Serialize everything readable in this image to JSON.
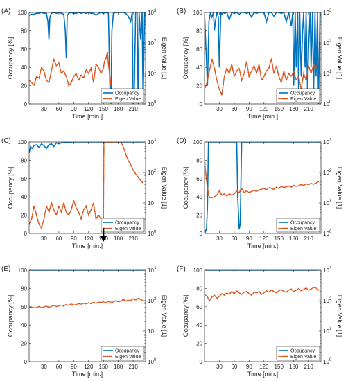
{
  "colors": {
    "occupancy": "#0072BD",
    "eigen": "#D95319",
    "axis": "#262626"
  },
  "common": {
    "xlabel": "Time [min.]",
    "ylabel_left": "Occupancy [%]",
    "ylabel_right": "Eigen Value [1]",
    "x_ticks": [
      30,
      60,
      90,
      120,
      150,
      180,
      210
    ],
    "xlim": [
      0,
      235
    ],
    "yleft_ticks": [
      0,
      20,
      40,
      60,
      80,
      100
    ],
    "yleft_lim": [
      0,
      100
    ],
    "yright_scale": "log",
    "yright_lim": [
      1,
      1000
    ],
    "yright_tick_labels": [
      "10^0",
      "10^1",
      "10^2",
      "10^3"
    ],
    "legend": [
      "Occupancy",
      "Eigen Value"
    ],
    "legend_position": "bottom-right"
  },
  "chart_data": [
    {
      "type": "line",
      "panel_label": "(A)",
      "series": [
        {
          "name": "Occupancy",
          "axis": "left",
          "style": "solid",
          "x": [
            0,
            5,
            10,
            15,
            20,
            25,
            30,
            35,
            38,
            40,
            42,
            45,
            50,
            55,
            60,
            65,
            70,
            73,
            75,
            77,
            80,
            85,
            90,
            95,
            100,
            105,
            110,
            115,
            120,
            125,
            130,
            135,
            140,
            145,
            150,
            155,
            160,
            163,
            165,
            167,
            170,
            175,
            180,
            185,
            190,
            195,
            200,
            205,
            208,
            210,
            212,
            215,
            218,
            220,
            222,
            225,
            228,
            230,
            233
          ],
          "y": [
            97,
            98,
            98,
            99,
            99,
            100,
            99,
            99,
            90,
            70,
            95,
            99,
            100,
            99,
            100,
            99,
            98,
            80,
            50,
            97,
            99,
            100,
            99,
            99,
            100,
            99,
            100,
            99,
            100,
            99,
            99,
            97,
            99,
            100,
            99,
            100,
            99,
            20,
            0,
            80,
            99,
            100,
            100,
            100,
            100,
            99,
            96,
            90,
            100,
            0,
            10,
            100,
            100,
            0,
            100,
            70,
            100,
            0,
            100
          ]
        },
        {
          "name": "Eigen Value",
          "axis": "right",
          "style": "dotted",
          "x": [
            0,
            5,
            10,
            15,
            20,
            25,
            30,
            35,
            40,
            45,
            50,
            55,
            60,
            65,
            70,
            75,
            80,
            85,
            90,
            95,
            100,
            105,
            110,
            115,
            120,
            125,
            130,
            135,
            140,
            145,
            150,
            152,
            155,
            158,
            160,
            163,
            165
          ],
          "y": [
            6,
            5,
            4,
            8,
            7,
            16,
            12,
            6,
            5,
            12,
            30,
            18,
            22,
            10,
            12,
            8,
            4,
            5,
            8,
            10,
            6,
            9,
            7,
            13,
            10,
            15,
            5,
            20,
            16,
            10,
            15,
            25,
            30,
            50,
            20,
            8,
            4
          ]
        }
      ]
    },
    {
      "type": "line",
      "panel_label": "(B)",
      "series": [
        {
          "name": "Occupancy",
          "axis": "left",
          "style": "solid",
          "x": [
            0,
            3,
            6,
            9,
            12,
            15,
            18,
            20,
            22,
            25,
            28,
            30,
            33,
            35,
            38,
            40,
            45,
            50,
            55,
            60,
            65,
            70,
            75,
            80,
            85,
            90,
            95,
            100,
            105,
            110,
            115,
            120,
            125,
            130,
            135,
            140,
            145,
            150,
            155,
            160,
            165,
            170,
            175,
            178,
            180,
            183,
            185,
            188,
            190,
            192,
            195,
            198,
            200,
            203,
            205,
            208,
            210,
            213,
            215,
            218,
            220,
            223,
            225,
            228,
            230,
            233
          ],
          "y": [
            100,
            60,
            20,
            90,
            100,
            95,
            100,
            80,
            90,
            100,
            95,
            40,
            100,
            98,
            100,
            99,
            100,
            92,
            100,
            99,
            100,
            98,
            100,
            100,
            99,
            100,
            95,
            100,
            99,
            100,
            100,
            100,
            90,
            100,
            100,
            96,
            100,
            100,
            99,
            100,
            90,
            100,
            85,
            100,
            20,
            100,
            40,
            100,
            10,
            100,
            30,
            80,
            100,
            40,
            100,
            10,
            60,
            100,
            40,
            100,
            10,
            100,
            30,
            100,
            0,
            100
          ]
        },
        {
          "name": "Eigen Value",
          "axis": "right",
          "style": "dotted",
          "x": [
            0,
            5,
            10,
            15,
            20,
            25,
            30,
            35,
            40,
            45,
            50,
            55,
            60,
            65,
            70,
            75,
            80,
            85,
            90,
            95,
            100,
            105,
            110,
            115,
            120,
            125,
            130,
            135,
            140,
            145,
            150,
            155,
            160,
            165,
            170,
            175,
            180,
            185,
            190,
            195,
            200,
            205,
            210,
            215,
            220,
            225,
            230
          ],
          "y": [
            3,
            5,
            12,
            30,
            15,
            6,
            3,
            2,
            8,
            15,
            10,
            20,
            8,
            12,
            15,
            6,
            10,
            25,
            8,
            12,
            18,
            10,
            20,
            6,
            8,
            12,
            15,
            30,
            10,
            18,
            8,
            5,
            12,
            6,
            10,
            8,
            12,
            6,
            8,
            3,
            10,
            6,
            18,
            10,
            20,
            15,
            25
          ]
        }
      ]
    },
    {
      "type": "line",
      "panel_label": "(C)",
      "annotation": "arrow-at-x-150",
      "series": [
        {
          "name": "Occupancy",
          "axis": "left",
          "style": "solid",
          "x": [
            0,
            3,
            6,
            10,
            15,
            20,
            25,
            30,
            35,
            40,
            45,
            50,
            55,
            60,
            65,
            70,
            75,
            80,
            85,
            90,
            95,
            100,
            110,
            120,
            130,
            140,
            150,
            160,
            170,
            180,
            190,
            200,
            210,
            220,
            230
          ],
          "y": [
            88,
            95,
            93,
            96,
            97,
            94,
            98,
            96,
            93,
            97,
            98,
            95,
            99,
            98,
            99,
            99,
            100,
            99,
            100,
            100,
            100,
            100,
            100,
            100,
            100,
            100,
            100,
            100,
            100,
            100,
            100,
            100,
            100,
            100,
            100
          ]
        },
        {
          "name": "Eigen Value",
          "axis": "right",
          "style": "dotted",
          "x": [
            0,
            5,
            10,
            15,
            20,
            25,
            30,
            35,
            40,
            45,
            50,
            55,
            60,
            65,
            70,
            75,
            80,
            85,
            90,
            95,
            100,
            105,
            110,
            115,
            120,
            125,
            130,
            135,
            140,
            145,
            150,
            151,
            155,
            160,
            165,
            170,
            175,
            180,
            185,
            190,
            195,
            200,
            205,
            210,
            215,
            220,
            225,
            230
          ],
          "y": [
            2,
            3,
            8,
            4,
            2,
            1.5,
            3,
            8,
            5,
            10,
            6,
            4,
            8,
            5,
            10,
            5,
            4,
            6,
            12,
            7,
            5,
            3,
            6,
            8,
            4,
            6,
            10,
            3,
            4,
            3,
            3,
            1000,
            1000,
            1000,
            1000,
            1000,
            1000,
            1000,
            1000,
            700,
            400,
            250,
            180,
            120,
            90,
            70,
            55,
            45
          ]
        }
      ]
    },
    {
      "type": "line",
      "panel_label": "(D)",
      "series": [
        {
          "name": "Occupancy",
          "axis": "left",
          "style": "solid",
          "x": [
            0,
            2,
            4,
            6,
            8,
            10,
            15,
            20,
            30,
            40,
            50,
            60,
            65,
            67,
            70,
            72,
            75,
            77,
            80,
            85,
            90,
            100,
            120,
            150,
            180,
            210,
            233
          ],
          "y": [
            5,
            2,
            5,
            30,
            100,
            100,
            100,
            100,
            100,
            100,
            100,
            100,
            100,
            40,
            5,
            10,
            100,
            100,
            100,
            100,
            100,
            100,
            100,
            100,
            100,
            100,
            100
          ]
        },
        {
          "name": "Eigen Value",
          "axis": "right",
          "style": "dotted",
          "x": [
            0,
            2,
            5,
            8,
            10,
            15,
            20,
            25,
            30,
            35,
            40,
            45,
            50,
            55,
            60,
            65,
            70,
            75,
            80,
            85,
            90,
            95,
            100,
            105,
            110,
            115,
            120,
            125,
            130,
            135,
            140,
            145,
            150,
            155,
            160,
            165,
            170,
            175,
            180,
            185,
            190,
            195,
            200,
            205,
            210,
            215,
            220,
            225,
            230
          ],
          "y": [
            300,
            120,
            40,
            20,
            15,
            15,
            16,
            18,
            25,
            18,
            20,
            17,
            20,
            18,
            20,
            25,
            22,
            30,
            22,
            25,
            22,
            24,
            26,
            24,
            27,
            28,
            30,
            27,
            32,
            30,
            28,
            33,
            30,
            35,
            32,
            34,
            36,
            33,
            38,
            35,
            37,
            40,
            38,
            42,
            40,
            44,
            41,
            45,
            50
          ]
        }
      ]
    },
    {
      "type": "line",
      "panel_label": "(E)",
      "series": [
        {
          "name": "Occupancy",
          "axis": "left",
          "style": "solid",
          "x": [
            0,
            230
          ],
          "y": [
            100,
            100
          ]
        },
        {
          "name": "Eigen Value",
          "axis": "right",
          "style": "dotted",
          "x": [
            0,
            5,
            10,
            15,
            20,
            25,
            30,
            35,
            40,
            45,
            50,
            55,
            60,
            65,
            70,
            75,
            80,
            85,
            90,
            95,
            100,
            105,
            110,
            115,
            120,
            125,
            130,
            135,
            140,
            145,
            150,
            155,
            160,
            165,
            170,
            175,
            180,
            185,
            190,
            195,
            200,
            205,
            210,
            215,
            220,
            225,
            230
          ],
          "y": [
            60,
            62,
            58,
            60,
            64,
            58,
            62,
            66,
            60,
            65,
            70,
            64,
            68,
            72,
            66,
            75,
            70,
            78,
            72,
            74,
            80,
            76,
            82,
            78,
            85,
            80,
            88,
            82,
            90,
            86,
            92,
            84,
            95,
            88,
            90,
            100,
            92,
            96,
            110,
            98,
            104,
            100,
            115,
            105,
            120,
            110,
            100
          ]
        }
      ]
    },
    {
      "type": "line",
      "panel_label": "(F)",
      "series": [
        {
          "name": "Occupancy",
          "axis": "left",
          "style": "solid",
          "x": [
            0,
            230
          ],
          "y": [
            100,
            100
          ]
        },
        {
          "name": "Eigen Value",
          "axis": "right",
          "style": "dotted",
          "x": [
            0,
            5,
            10,
            15,
            20,
            25,
            30,
            35,
            40,
            45,
            50,
            55,
            60,
            65,
            70,
            75,
            80,
            85,
            90,
            95,
            100,
            105,
            110,
            115,
            120,
            125,
            130,
            135,
            140,
            145,
            150,
            155,
            160,
            165,
            170,
            175,
            180,
            185,
            190,
            195,
            200,
            205,
            210,
            215,
            220,
            225,
            230
          ],
          "y": [
            160,
            140,
            100,
            130,
            150,
            120,
            140,
            170,
            150,
            180,
            160,
            200,
            170,
            210,
            180,
            160,
            190,
            200,
            170,
            150,
            190,
            180,
            200,
            160,
            180,
            210,
            190,
            220,
            200,
            180,
            210,
            230,
            200,
            190,
            220,
            240,
            200,
            220,
            250,
            210,
            230,
            260,
            220,
            240,
            270,
            260,
            220
          ]
        }
      ]
    }
  ]
}
